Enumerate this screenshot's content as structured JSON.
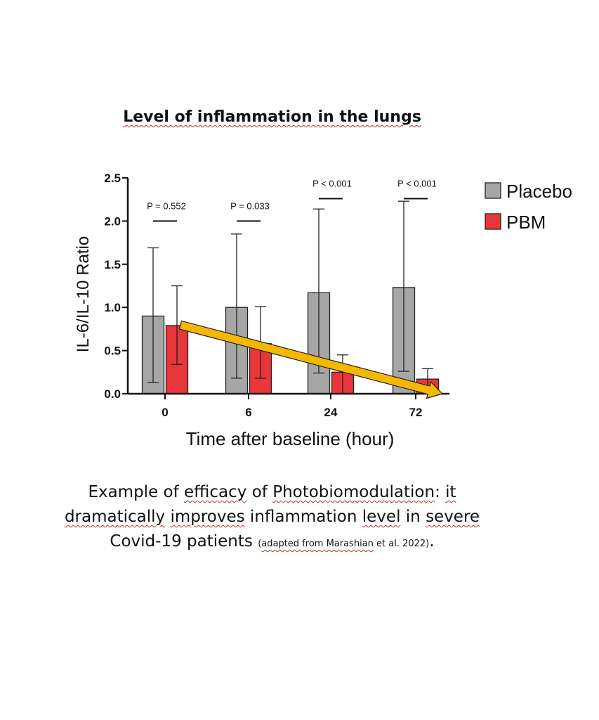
{
  "chart_data": {
    "type": "bar",
    "title": "Level of inflammation in the lungs",
    "xlabel": "Time after baseline (hour)",
    "ylabel": "IL-6/IL-10  Ratio",
    "categories": [
      "0",
      "6",
      "24",
      "72"
    ],
    "ylim": [
      0,
      2.5
    ],
    "yticks": [
      "0.0",
      "0.5",
      "1.0",
      "1.5",
      "2.0",
      "2.5"
    ],
    "series": [
      {
        "name": "Placebo",
        "color": "#a6a6a6",
        "values": [
          0.9,
          1.0,
          1.17,
          1.23
        ],
        "err_high": [
          1.69,
          1.85,
          2.14,
          2.23
        ],
        "err_low": [
          0.13,
          0.18,
          0.24,
          0.26
        ]
      },
      {
        "name": "PBM",
        "color": "#e8363a",
        "values": [
          0.79,
          0.58,
          0.25,
          0.17
        ],
        "err_high": [
          1.25,
          1.01,
          0.45,
          0.29
        ],
        "err_low": [
          0.34,
          0.18,
          0.0,
          0.0
        ]
      }
    ],
    "annotations": [
      "P = 0.552",
      "P = 0.033",
      "P < 0.001",
      "P < 0.001"
    ],
    "annotation_y": [
      2.0,
      2.0,
      2.26,
      2.26
    ],
    "trend_arrow": {
      "color": "#f5b800",
      "from": [
        0,
        0.78
      ],
      "to": [
        3,
        0.0
      ]
    },
    "legend": "right",
    "grid": false
  },
  "caption": {
    "line1_parts": [
      "Example of ",
      "efficacy",
      " of ",
      "Photobiomodulation",
      ": ",
      "it"
    ],
    "line2_parts": [
      "dramatically",
      " ",
      "improves",
      " inflammation ",
      "level",
      " in ",
      "severe"
    ],
    "line3_main": "Covid-19 patients ",
    "line3_paren_open": "(",
    "line3_source": "adapted from Marashian",
    "line3_source_rest": " et al. 2022)",
    "line3_end": "."
  }
}
